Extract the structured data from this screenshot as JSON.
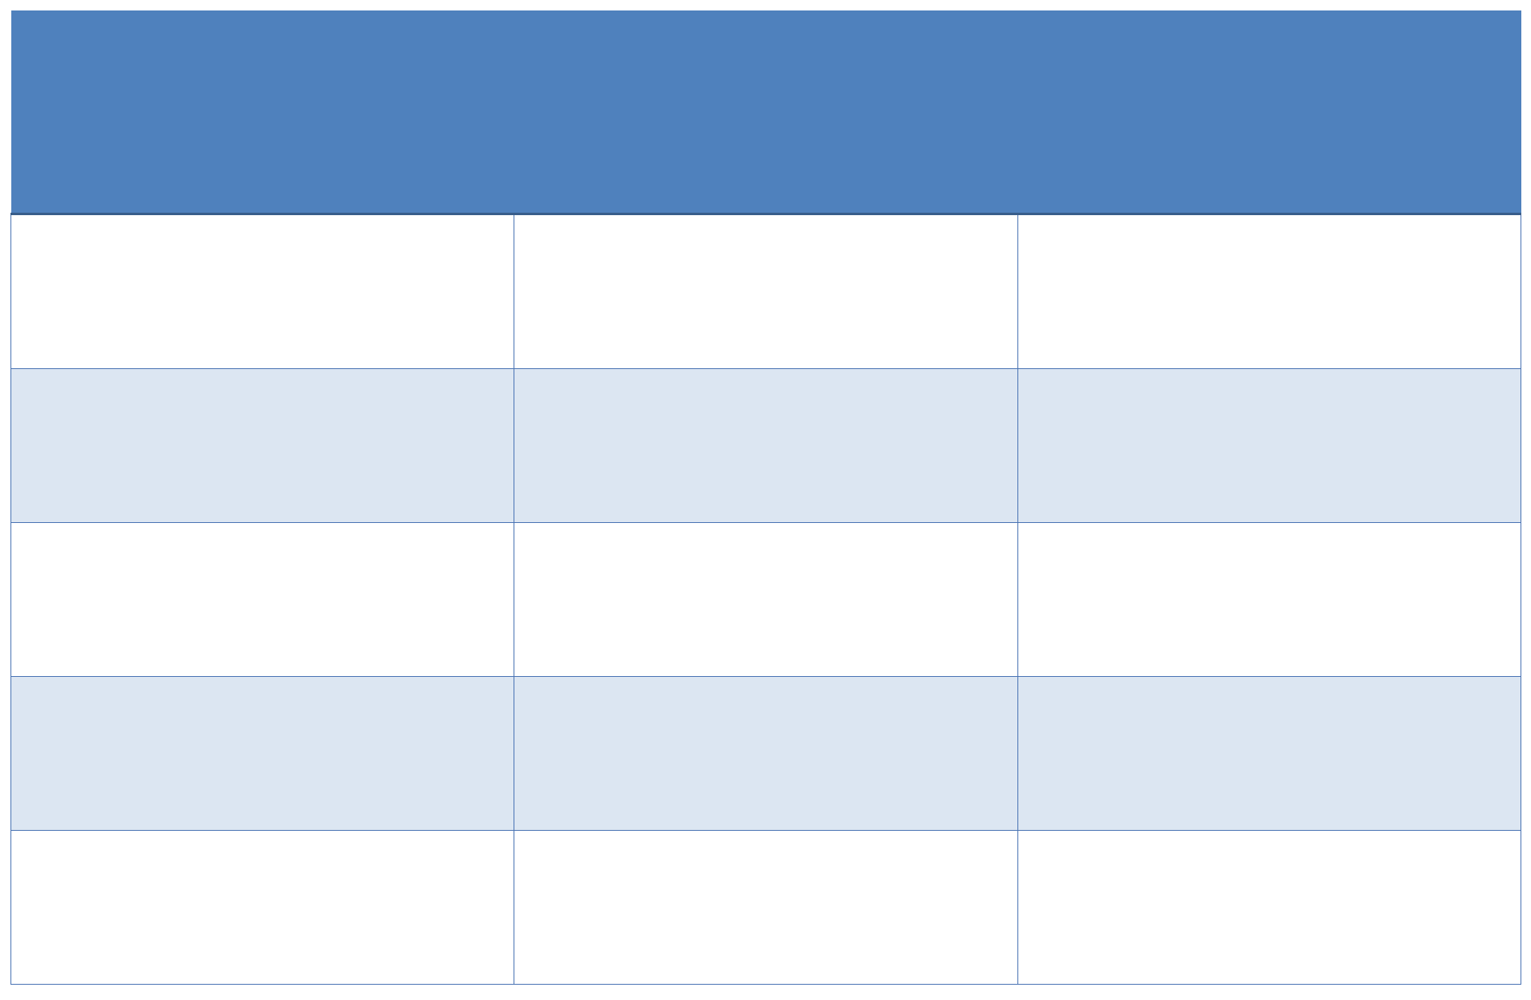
{
  "colors": {
    "header": "#4F81BD",
    "stripe": "#DCE6F2",
    "border": "#4A74B4",
    "header_border": "#385D8A"
  },
  "table": {
    "headers": [
      "",
      "",
      ""
    ],
    "rows": [
      [
        "",
        "",
        ""
      ],
      [
        "",
        "",
        ""
      ],
      [
        "",
        "",
        ""
      ],
      [
        "",
        "",
        ""
      ],
      [
        "",
        "",
        ""
      ]
    ]
  }
}
